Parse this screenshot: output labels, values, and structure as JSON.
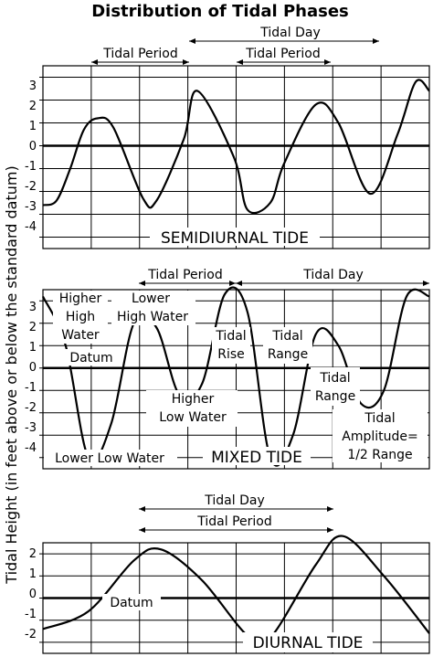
{
  "title": "Distribution of Tidal Phases",
  "y_axis_label": "Tidal Height (in feet above or below the standard datum)",
  "chart_data": [
    {
      "type": "line",
      "title": "SEMIDIURNAL TIDE",
      "ylim": [
        -4.5,
        3.5
      ],
      "yticks": [
        3,
        2,
        1,
        0,
        -1,
        -2,
        -3,
        -4
      ],
      "x": [
        0,
        0.3,
        0.6,
        0.9,
        1.2,
        1.55,
        2.2,
        2.5,
        3.1,
        3.4,
        4.2,
        4.5,
        5.0,
        5.3,
        6.0,
        6.5,
        7.2,
        7.8,
        8.2,
        8.5
      ],
      "y": [
        -2.6,
        -2.4,
        -1.0,
        0.7,
        1.2,
        0.8,
        -2.3,
        -2.4,
        0.3,
        2.4,
        -0.5,
        -2.8,
        -2.5,
        -0.8,
        1.8,
        1.0,
        -2.1,
        0.5,
        2.8,
        2.4
      ],
      "annotations": [
        "Tidal Period",
        "Tidal Day",
        "Tidal Period"
      ],
      "grid": true
    },
    {
      "type": "line",
      "title": "MIXED TIDE",
      "ylim": [
        -4.5,
        3.5
      ],
      "yticks": [
        3,
        2,
        1,
        0,
        -1,
        -2,
        -3,
        -4
      ],
      "x": [
        0,
        0.5,
        1.0,
        1.5,
        2.0,
        2.5,
        3.0,
        3.5,
        4.0,
        4.5,
        5.0,
        5.5,
        6.0,
        6.5,
        7.0,
        7.5,
        8.0,
        8.5
      ],
      "y": [
        3.2,
        1.0,
        -4.0,
        -2.5,
        2.0,
        1.8,
        -1.2,
        -0.7,
        3.3,
        2.5,
        -4.0,
        -3.0,
        1.5,
        1.0,
        -1.6,
        -1.0,
        3.2,
        3.2
      ],
      "annotations": [
        "Higher High Water",
        "Lower High Water",
        "Datum",
        "Higher Low Water",
        "Tidal Rise",
        "Tidal Range",
        "Tidal Range",
        "Tidal Amplitude= 1/2 Range",
        "Lower Low Water",
        "Tidal Period",
        "Tidal Day"
      ],
      "grid": true
    },
    {
      "type": "line",
      "title": "DIURNAL TIDE",
      "ylim": [
        -2.5,
        2.5
      ],
      "yticks": [
        2,
        1,
        0,
        -1,
        -2
      ],
      "x": [
        0,
        1,
        2,
        2.6,
        3.5,
        4.5,
        5,
        6,
        6.6,
        7.5,
        8.5
      ],
      "y": [
        -1.4,
        -0.6,
        1.7,
        2.2,
        0.8,
        -1.7,
        -1.8,
        1.5,
        2.8,
        1.0,
        -1.6
      ],
      "annotations": [
        "Tidal Day",
        "Tidal Period",
        "Datum"
      ],
      "grid": true
    }
  ],
  "labels": {
    "semi": {
      "title": "SEMIDIURNAL TIDE",
      "tidal_period_1": "Tidal Period",
      "tidal_day": "Tidal Day",
      "tidal_period_2": "Tidal Period"
    },
    "mixed": {
      "title": "MIXED TIDE",
      "tidal_period": "Tidal Period",
      "tidal_day": "Tidal Day",
      "higher": "Higher",
      "high": "High",
      "water": "Water",
      "lower": "Lower",
      "lower_high_water": "High Water",
      "datum": "Datum",
      "higher_low": "Higher",
      "low_water": "Low Water",
      "tidal_rise_1": "Tidal",
      "tidal_rise_2": "Rise",
      "tidal_range_1": "Tidal",
      "tidal_range_2": "Range",
      "tidal_range_b1": "Tidal",
      "tidal_range_b2": "Range",
      "amp1": "Tidal",
      "amp2": "Amplitude=",
      "amp3": "1/2 Range",
      "lower_low_water": "Lower Low Water"
    },
    "diurnal": {
      "title": "DIURNAL TIDE",
      "tidal_day": "Tidal Day",
      "tidal_period": "Tidal Period",
      "datum": "Datum"
    }
  },
  "ticks": {
    "semi": [
      "3",
      "2",
      "1",
      "0",
      "-1",
      "-2",
      "-3",
      "-4"
    ],
    "mixed": [
      "3",
      "2",
      "1",
      "0",
      "-1",
      "-2",
      "-3",
      "-4"
    ],
    "diurnal": [
      "2",
      "1",
      "0",
      "-1",
      "-2"
    ]
  }
}
